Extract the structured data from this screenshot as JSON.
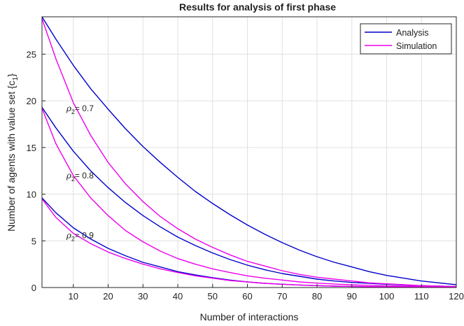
{
  "chart_data": {
    "type": "line",
    "title": "Results for analysis of first phase",
    "xlabel": "Number of interactions",
    "ylabel_main": "Number of agents with value set {c",
    "ylabel_sub": "1",
    "ylabel_end": "}",
    "xlim": [
      1,
      120
    ],
    "ylim": [
      0,
      29
    ],
    "xticks": [
      10,
      20,
      30,
      40,
      50,
      60,
      70,
      80,
      90,
      100,
      110,
      120
    ],
    "yticks": [
      0,
      5,
      10,
      15,
      20,
      25
    ],
    "grid": true,
    "legend_position": "top-right",
    "legend": [
      {
        "name": "Analysis",
        "color": "#0000cc"
      },
      {
        "name": "Simulation",
        "color": "#ee00ee"
      }
    ],
    "annotations": [
      {
        "symbol": "ρ",
        "sub": "2",
        "text": "= 0.7",
        "x": 8,
        "y": 18.9
      },
      {
        "symbol": "ρ",
        "sub": "2",
        "text": "= 0.8",
        "x": 8,
        "y": 11.7
      },
      {
        "symbol": "ρ",
        "sub": "2",
        "text": "= 0.9",
        "x": 8,
        "y": 5.3
      }
    ],
    "series": [
      {
        "group": "Analysis",
        "color": "#0000cc",
        "x": [
          1,
          5,
          10,
          15,
          20,
          25,
          30,
          35,
          40,
          45,
          50,
          55,
          60,
          65,
          70,
          75,
          80,
          85,
          90,
          95,
          100,
          105,
          110,
          115,
          120
        ],
        "y": [
          29.0,
          26.6,
          23.8,
          21.3,
          19.1,
          17.0,
          15.1,
          13.4,
          11.8,
          10.3,
          9.0,
          7.8,
          6.7,
          5.7,
          4.8,
          4.0,
          3.3,
          2.7,
          2.2,
          1.7,
          1.3,
          1.0,
          0.7,
          0.5,
          0.3
        ]
      },
      {
        "group": "Analysis",
        "color": "#0000cc",
        "x": [
          1,
          5,
          10,
          15,
          20,
          25,
          30,
          35,
          40,
          45,
          50,
          55,
          60,
          65,
          70,
          75,
          80,
          85,
          90,
          95,
          100,
          105,
          110,
          115,
          120
        ],
        "y": [
          19.3,
          17.1,
          14.6,
          12.5,
          10.7,
          9.1,
          7.7,
          6.5,
          5.4,
          4.5,
          3.7,
          3.0,
          2.4,
          1.9,
          1.5,
          1.2,
          0.9,
          0.7,
          0.55,
          0.45,
          0.35,
          0.27,
          0.2,
          0.15,
          0.1
        ]
      },
      {
        "group": "Analysis",
        "color": "#0000cc",
        "x": [
          1,
          5,
          10,
          15,
          20,
          25,
          30,
          35,
          40,
          45,
          50,
          55,
          60,
          65,
          70,
          75,
          80,
          85,
          90,
          95,
          100,
          105,
          110,
          115,
          120
        ],
        "y": [
          9.6,
          8.0,
          6.4,
          5.2,
          4.2,
          3.4,
          2.7,
          2.2,
          1.7,
          1.35,
          1.05,
          0.8,
          0.6,
          0.45,
          0.35,
          0.27,
          0.2,
          0.15,
          0.12,
          0.09,
          0.07,
          0.05,
          0.04,
          0.03,
          0.02
        ]
      },
      {
        "group": "Simulation",
        "color": "#ee00ee",
        "x": [
          1,
          5,
          10,
          15,
          20,
          25,
          30,
          35,
          40,
          45,
          50,
          55,
          60,
          65,
          70,
          75,
          80,
          85,
          90,
          95,
          100,
          105,
          110,
          115,
          120
        ],
        "y": [
          28.8,
          24.5,
          19.8,
          16.3,
          13.4,
          11.1,
          9.2,
          7.6,
          6.3,
          5.2,
          4.3,
          3.5,
          2.8,
          2.3,
          1.8,
          1.4,
          1.1,
          0.9,
          0.7,
          0.5,
          0.4,
          0.3,
          0.2,
          0.15,
          0.1
        ]
      },
      {
        "group": "Simulation",
        "color": "#ee00ee",
        "x": [
          1,
          5,
          10,
          15,
          20,
          25,
          30,
          35,
          40,
          45,
          50,
          55,
          60,
          65,
          70,
          75,
          80,
          85,
          90,
          95,
          100,
          105,
          110,
          115,
          120
        ],
        "y": [
          19.2,
          15.4,
          12.0,
          9.6,
          7.7,
          6.1,
          4.9,
          3.9,
          3.1,
          2.5,
          2.0,
          1.6,
          1.25,
          1.0,
          0.8,
          0.6,
          0.47,
          0.37,
          0.29,
          0.23,
          0.18,
          0.14,
          0.11,
          0.08,
          0.06
        ]
      },
      {
        "group": "Simulation",
        "color": "#ee00ee",
        "x": [
          1,
          5,
          10,
          15,
          20,
          25,
          30,
          35,
          40,
          45,
          50,
          55,
          60,
          65,
          70,
          75,
          80,
          85,
          90,
          95,
          100,
          105,
          110,
          115,
          120
        ],
        "y": [
          9.5,
          7.5,
          5.8,
          4.7,
          3.8,
          3.1,
          2.5,
          2.0,
          1.6,
          1.25,
          1.0,
          0.75,
          0.6,
          0.45,
          0.35,
          0.27,
          0.2,
          0.15,
          0.12,
          0.09,
          0.07,
          0.05,
          0.04,
          0.03,
          0.02
        ]
      }
    ]
  }
}
